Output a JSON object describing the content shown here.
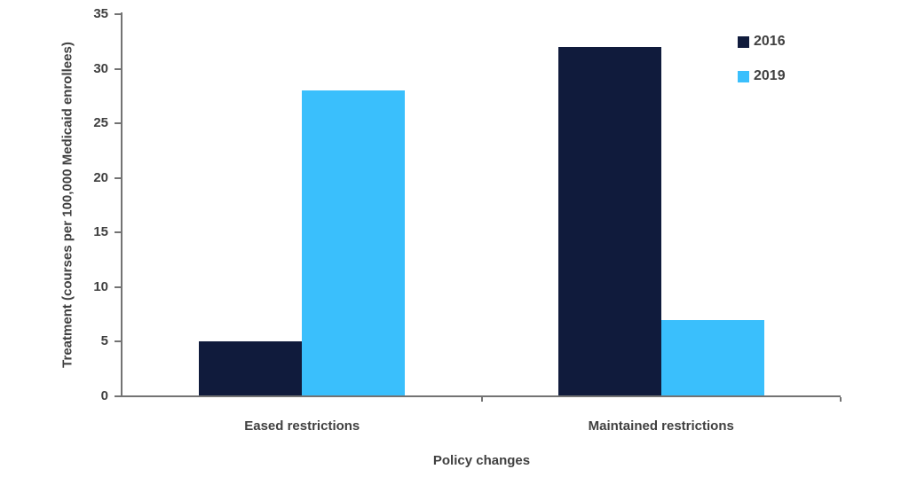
{
  "chart_data": {
    "type": "bar",
    "title": "",
    "categories": [
      "Eased restrictions",
      "Maintained restrictions"
    ],
    "series": [
      {
        "name": "2016",
        "color": "#101B3C",
        "values": [
          5,
          32
        ]
      },
      {
        "name": "2019",
        "color": "#3ABFFC",
        "values": [
          28,
          7
        ]
      }
    ],
    "xlabel": "Policy changes",
    "ylabel": "Treatment (courses per 100,000 Medicaid enrollees)",
    "ylim": [
      0,
      35
    ],
    "yticks": [
      0,
      5,
      10,
      15,
      20,
      25,
      30,
      35
    ],
    "grid": false,
    "legend_position": "top-right",
    "axis_color": "#737373",
    "text_color": "#404040"
  }
}
